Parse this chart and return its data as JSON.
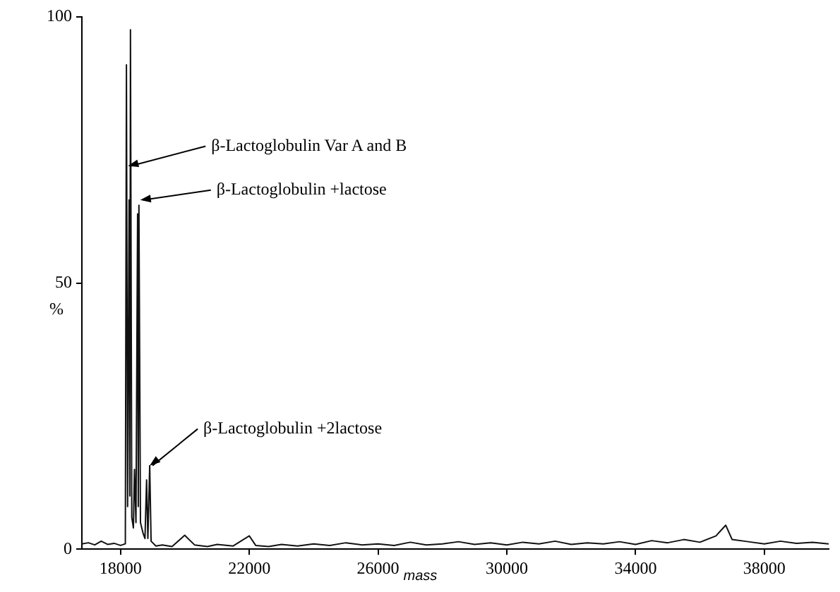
{
  "chart_data": {
    "type": "line",
    "xlabel": "mass",
    "ylabel": "%",
    "xlim": [
      16800,
      40000
    ],
    "xticks": [
      18000,
      22000,
      26000,
      30000,
      34000,
      38000
    ],
    "ylim": [
      0,
      100
    ],
    "yticks": [
      0,
      50,
      100
    ],
    "grid": false,
    "legend": false,
    "marker": "none",
    "line_style": "solid",
    "series": [
      {
        "color": "#111111",
        "x": [
          16800,
          17000,
          17200,
          17400,
          17600,
          17800,
          18000,
          18150,
          18184,
          18220,
          18267,
          18290,
          18309,
          18350,
          18400,
          18434,
          18480,
          18531,
          18552,
          18572,
          18620,
          18700,
          18760,
          18810,
          18850,
          18907,
          18950,
          19100,
          19300,
          19600,
          19994,
          20300,
          20700,
          21000,
          21500,
          22000,
          22200,
          22600,
          23000,
          23500,
          24000,
          24500,
          25000,
          25500,
          26000,
          26500,
          27000,
          27500,
          28000,
          28500,
          29000,
          29500,
          30000,
          30500,
          31000,
          31500,
          32000,
          32500,
          33000,
          33500,
          34000,
          34500,
          35000,
          35500,
          36000,
          36500,
          36800,
          37000,
          37500,
          38000,
          38500,
          39000,
          39500,
          40000
        ],
        "values": [
          1,
          1.2,
          0.8,
          1.5,
          0.9,
          1.1,
          0.7,
          1,
          91,
          8,
          65.6,
          10,
          97.6,
          6,
          4,
          15,
          5,
          63,
          8,
          64.6,
          5,
          3,
          2,
          13,
          2,
          15.7,
          1.5,
          0.6,
          0.8,
          0.5,
          2.6,
          0.8,
          0.5,
          0.9,
          0.6,
          2.5,
          0.7,
          0.5,
          0.9,
          0.6,
          1,
          0.7,
          1.2,
          0.8,
          1,
          0.7,
          1.3,
          0.8,
          1,
          1.4,
          0.9,
          1.2,
          0.8,
          1.3,
          1,
          1.5,
          0.9,
          1.2,
          1,
          1.4,
          0.9,
          1.6,
          1.2,
          1.8,
          1.3,
          2.5,
          4.5,
          1.8,
          1.4,
          1,
          1.5,
          1.1,
          1.3,
          1
        ]
      }
    ],
    "annotations": [
      {
        "text": "β-Lactoglobulin Var A and B",
        "x": 18230,
        "y": 72
      },
      {
        "text": "β-Lactoglobulin +lactose",
        "x": 18614,
        "y": 65.6
      },
      {
        "text": "β-Lactoglobulin +2lactose",
        "x": 18907,
        "y": 15.7
      }
    ]
  }
}
